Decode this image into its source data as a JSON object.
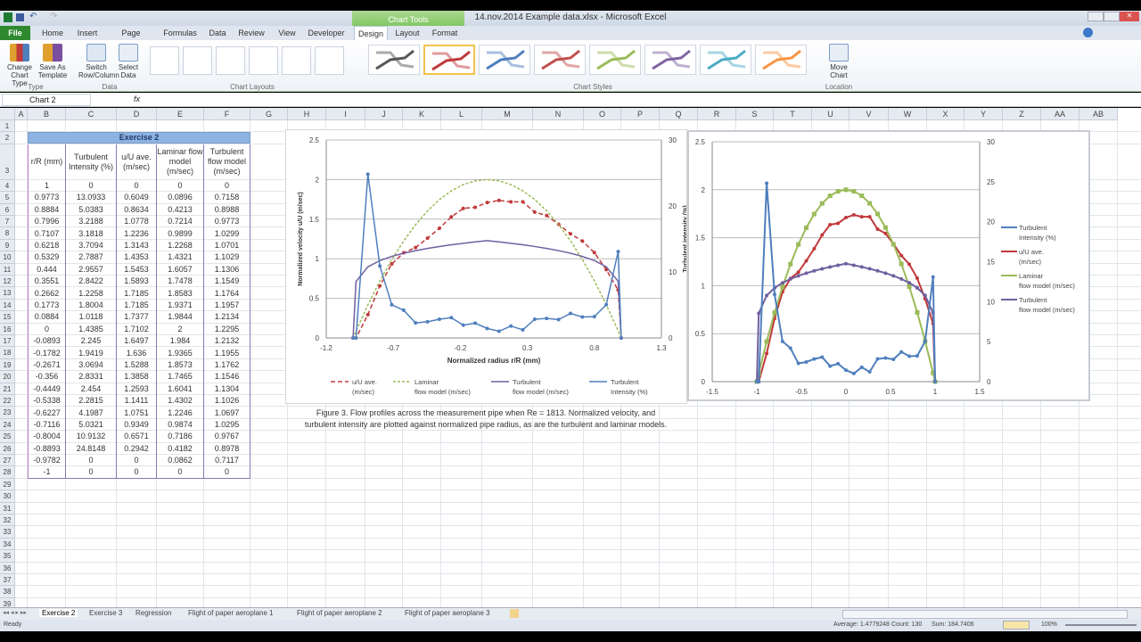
{
  "window": {
    "title": "14.nov.2014 Example data.xlsx - Microsoft Excel",
    "context_tab": "Chart Tools"
  },
  "tabs": [
    "File",
    "Home",
    "Insert",
    "Page Layout",
    "Formulas",
    "Data",
    "Review",
    "View",
    "Developer",
    "Design",
    "Layout",
    "Format"
  ],
  "active_tab": "Design",
  "ribbon": {
    "change_chart_type": "Change Chart Type",
    "save_as_template": "Save As Template",
    "group_type": "Type",
    "switch_row_column": "Switch Row/Column",
    "select_data": "Select Data",
    "group_data": "Data",
    "group_chart_layouts": "Chart Layouts",
    "group_chart_styles": "Chart Styles",
    "move_chart": "Move Chart",
    "group_location": "Location",
    "style_colors": [
      "#555555",
      "#c0393b",
      "#4f7fbd",
      "#c0504d",
      "#9bbb59",
      "#7f64a2",
      "#4bacc6",
      "#f79646"
    ],
    "selected_style": 2
  },
  "formula_bar": {
    "name_box": "Chart 2",
    "fx": "fx",
    "value": ""
  },
  "columns": [
    "A",
    "B",
    "C",
    "D",
    "E",
    "F",
    "G",
    "H",
    "I",
    "J",
    "K",
    "L",
    "M",
    "N",
    "O",
    "P",
    "Q",
    "R",
    "S",
    "T",
    "U",
    "V",
    "W",
    "X",
    "Y",
    "Z",
    "AA",
    "AB"
  ],
  "table": {
    "title": "Exercise 2",
    "headers": [
      "r/R (mm)",
      "Turbulent Intensity (%)",
      "u/U ave. (m/sec)",
      "Laminar flow model (m/sec)",
      "Turbulent flow model (m/sec)"
    ],
    "rows": [
      [
        "1",
        "0",
        "0",
        "0",
        "0"
      ],
      [
        "0.9773",
        "13.0933",
        "0.6049",
        "0.0896",
        "0.7158"
      ],
      [
        "0.8884",
        "5.0383",
        "0.8634",
        "0.4213",
        "0.8988"
      ],
      [
        "0.7996",
        "3.2188",
        "1.0778",
        "0.7214",
        "0.9773"
      ],
      [
        "0.7107",
        "3.1818",
        "1.2236",
        "0.9899",
        "1.0299"
      ],
      [
        "0.6218",
        "3.7094",
        "1.3143",
        "1.2268",
        "1.0701"
      ],
      [
        "0.5329",
        "2.7887",
        "1.4353",
        "1.4321",
        "1.1029"
      ],
      [
        "0.444",
        "2.9557",
        "1.5453",
        "1.6057",
        "1.1306"
      ],
      [
        "0.3551",
        "2.8422",
        "1.5893",
        "1.7478",
        "1.1549"
      ],
      [
        "0.2662",
        "1.2258",
        "1.7185",
        "1.8583",
        "1.1764"
      ],
      [
        "0.1773",
        "1.8004",
        "1.7185",
        "1.9371",
        "1.1957"
      ],
      [
        "0.0884",
        "1.0118",
        "1.7377",
        "1.9844",
        "1.2134"
      ],
      [
        "0",
        "1.4385",
        "1.7102",
        "2",
        "1.2295"
      ],
      [
        "-0.0893",
        "2.245",
        "1.6497",
        "1.984",
        "1.2132"
      ],
      [
        "-0.1782",
        "1.9419",
        "1.636",
        "1.9365",
        "1.1955"
      ],
      [
        "-0.2671",
        "3.0694",
        "1.5288",
        "1.8573",
        "1.1762"
      ],
      [
        "-0.356",
        "2.8331",
        "1.3858",
        "1.7465",
        "1.1546"
      ],
      [
        "-0.4449",
        "2.454",
        "1.2593",
        "1.6041",
        "1.1304"
      ],
      [
        "-0.5338",
        "2.2815",
        "1.1411",
        "1.4302",
        "1.1026"
      ],
      [
        "-0.6227",
        "4.1987",
        "1.0751",
        "1.2246",
        "1.0697"
      ],
      [
        "-0.7116",
        "5.0321",
        "0.9349",
        "0.9874",
        "1.0295"
      ],
      [
        "-0.8004",
        "10.9132",
        "0.6571",
        "0.7186",
        "0.9767"
      ],
      [
        "-0.8893",
        "24.8148",
        "0.2942",
        "0.4182",
        "0.8978"
      ],
      [
        "-0.9782",
        "0",
        "0",
        "0.0862",
        "0.7117"
      ],
      [
        "-1",
        "0",
        "0",
        "0",
        "0"
      ]
    ]
  },
  "chart_data": [
    {
      "type": "line",
      "x": [
        1,
        0.9773,
        0.8884,
        0.7996,
        0.7107,
        0.6218,
        0.5329,
        0.444,
        0.3551,
        0.2662,
        0.1773,
        0.0884,
        0,
        -0.0893,
        -0.1782,
        -0.2671,
        -0.356,
        -0.4449,
        -0.5338,
        -0.6227,
        -0.7116,
        -0.8004,
        -0.8893,
        -0.9782,
        -1
      ],
      "xlabel": "Normalized radius r/R (mm)",
      "ylabel": "Normalized velocity u/U (m/sec)",
      "y2label": "Turbulent intensity (%)",
      "xlim": [
        -1.2,
        1.3
      ],
      "xticks": [
        "-1.2",
        "-0.7",
        "-0.2",
        "0.3",
        "0.8",
        "1.3"
      ],
      "ylim": [
        0,
        2.5
      ],
      "yticks": [
        "0",
        "0.5",
        "1",
        "1.5",
        "2",
        "2.5"
      ],
      "y2lim": [
        0,
        30
      ],
      "y2ticks": [
        "0",
        "10",
        "20",
        "30"
      ],
      "grid": true,
      "legend": "bottom",
      "series": [
        {
          "name": "u/U ave. (m/sec)",
          "axis": "left",
          "color": "#c0393b",
          "style": "dashed-dots",
          "values": [
            0,
            0.6049,
            0.8634,
            1.0778,
            1.2236,
            1.3143,
            1.4353,
            1.5453,
            1.5893,
            1.7185,
            1.7185,
            1.7377,
            1.7102,
            1.6497,
            1.636,
            1.5288,
            1.3858,
            1.2593,
            1.1411,
            1.0751,
            0.9349,
            0.6571,
            0.2942,
            0,
            0
          ]
        },
        {
          "name": "Laminar flow model (m/sec)",
          "axis": "left",
          "color": "#9bbb59",
          "style": "dashed",
          "values": [
            0,
            0.0896,
            0.4213,
            0.7214,
            0.9899,
            1.2268,
            1.4321,
            1.6057,
            1.7478,
            1.8583,
            1.9371,
            1.9844,
            2,
            1.984,
            1.9365,
            1.8573,
            1.7465,
            1.6041,
            1.4302,
            1.2246,
            0.9874,
            0.7186,
            0.4182,
            0.0862,
            0
          ]
        },
        {
          "name": "Turbulent flow model (m/sec)",
          "axis": "left",
          "color": "#7060a0",
          "style": "solid",
          "values": [
            0,
            0.7158,
            0.8988,
            0.9773,
            1.0299,
            1.0701,
            1.1029,
            1.1306,
            1.1549,
            1.1764,
            1.1957,
            1.2134,
            1.2295,
            1.2132,
            1.1955,
            1.1762,
            1.1546,
            1.1304,
            1.1026,
            1.0697,
            1.0295,
            0.9767,
            0.8978,
            0.7117,
            0
          ]
        },
        {
          "name": "Turbulent Intensity (%)",
          "axis": "right",
          "color": "#4f7fbd",
          "style": "solid-markers",
          "values": [
            0,
            13.0933,
            5.0383,
            3.2188,
            3.1818,
            3.7094,
            2.7887,
            2.9557,
            2.8422,
            1.2258,
            1.8004,
            1.0118,
            1.4385,
            2.245,
            1.9419,
            3.0694,
            2.8331,
            2.454,
            2.2815,
            4.1987,
            5.0321,
            10.9132,
            24.8148,
            0,
            0
          ]
        }
      ]
    },
    {
      "type": "line",
      "x": "same as chart 1",
      "xlim": [
        -1.5,
        1.5
      ],
      "xticks": [
        "-1.5",
        "-1",
        "-0.5",
        "0",
        "0.5",
        "1",
        "1.5"
      ],
      "ylim": [
        0,
        2.5
      ],
      "yticks": [
        "0",
        "0.5",
        "1",
        "1.5",
        "2",
        "2.5"
      ],
      "y2lim": [
        0,
        30
      ],
      "y2ticks": [
        "0",
        "5",
        "10",
        "15",
        "20",
        "25",
        "30"
      ],
      "grid": true,
      "legend": "right",
      "legend_order": [
        "Turbulent Intensity (%)",
        "u/U ave. (m/sec)",
        "Laminar flow model (m/sec)",
        "Turbulent flow model (m/sec)"
      ]
    }
  ],
  "caption": [
    "Figure 3. Flow profiles across the measurement pipe when Re = 1813. Normalized velocity, and",
    "turbulent intensity are plotted against normalized pipe radius, as are the turbulent and laminar models."
  ],
  "sheet_tabs": [
    "Exercise 2",
    "Exercise 3",
    "Regression",
    "Flight of paper aeroplane 1",
    "Flight of paper aeroplane 2",
    "Flight of paper aeroplane 3"
  ],
  "status": {
    "ready": "Ready",
    "average": "Average: 1.4779248",
    "count": "Count: 130",
    "sum": "Sum: 184.7406",
    "zoom": "100%"
  }
}
